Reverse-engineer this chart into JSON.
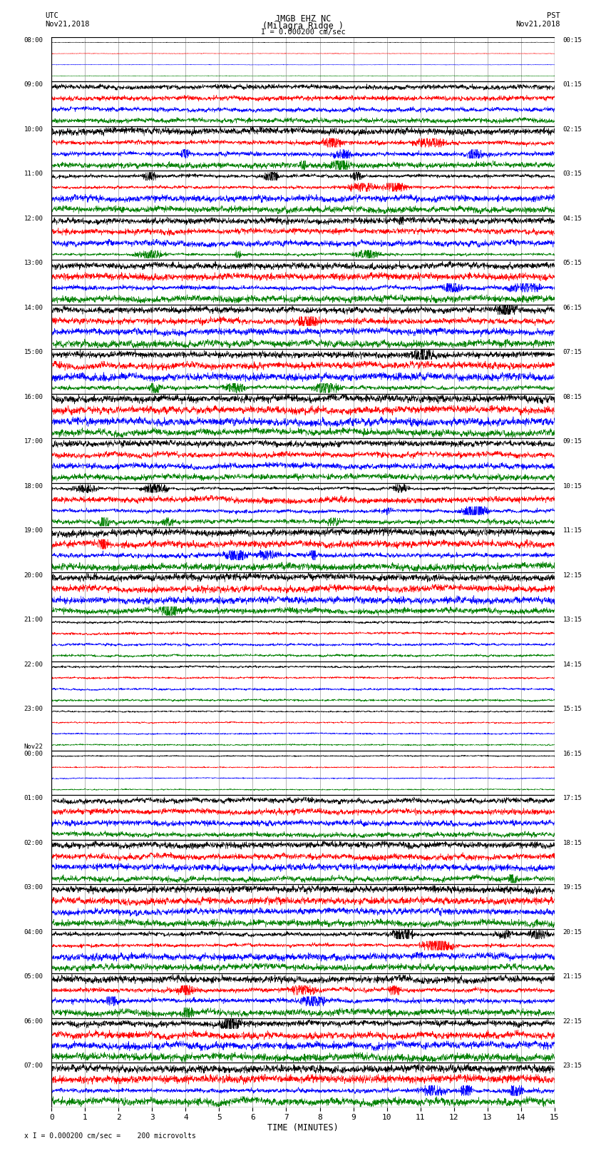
{
  "title_line1": "JMGB EHZ NC",
  "title_line2": "(Milagra Ridge )",
  "scale_text": "I = 0.000200 cm/sec",
  "xlabel": "TIME (MINUTES)",
  "footer": "x I = 0.000200 cm/sec =    200 microvolts",
  "xmin": 0,
  "xmax": 15,
  "xticks": [
    0,
    1,
    2,
    3,
    4,
    5,
    6,
    7,
    8,
    9,
    10,
    11,
    12,
    13,
    14,
    15
  ],
  "bg_color": "#ffffff",
  "trace_colors": [
    "black",
    "red",
    "blue",
    "green"
  ],
  "n_hours": 24,
  "traces_per_hour": 4,
  "noise_seed": 12345,
  "utc_labels": [
    "08:00",
    "09:00",
    "10:00",
    "11:00",
    "12:00",
    "13:00",
    "14:00",
    "15:00",
    "16:00",
    "17:00",
    "18:00",
    "19:00",
    "20:00",
    "21:00",
    "22:00",
    "23:00",
    "Nov22\n00:00",
    "01:00",
    "02:00",
    "03:00",
    "04:00",
    "05:00",
    "06:00",
    "07:00"
  ],
  "pst_labels": [
    "00:15",
    "01:15",
    "02:15",
    "03:15",
    "04:15",
    "05:15",
    "06:15",
    "07:15",
    "08:15",
    "09:15",
    "10:15",
    "11:15",
    "12:15",
    "13:15",
    "14:15",
    "15:15",
    "16:15",
    "17:15",
    "18:15",
    "19:15",
    "20:15",
    "21:15",
    "22:15",
    "23:15"
  ],
  "grid_color": "#999999",
  "hour_amplitudes": [
    0.06,
    0.55,
    0.8,
    0.75,
    0.72,
    0.78,
    0.82,
    0.85,
    0.88,
    0.7,
    0.75,
    0.85,
    0.8,
    0.3,
    0.25,
    0.18,
    0.15,
    0.65,
    0.75,
    0.8,
    0.82,
    0.85,
    0.9,
    0.92
  ],
  "row_amp": 0.42
}
